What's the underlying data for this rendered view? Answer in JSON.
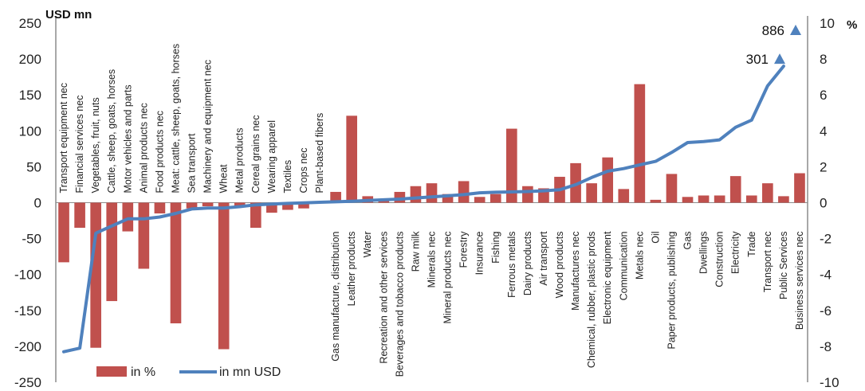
{
  "chart_data": {
    "type": "bar",
    "categories": [
      "Transport equipment nec",
      "Financial services nec",
      "Vegetables, fruit, nuts",
      "Cattle, sheep, goats, horses",
      "Motor vehicles and parts",
      "Animal products nec",
      "Food products nec",
      "Meat: cattle, sheep, goats, horses",
      "Sea transport",
      "Machinery and equipment nec",
      "Wheat",
      "Metal products",
      "Cereal grains nec",
      "Wearing apparel",
      "Textiles",
      "Crops nec",
      "Plant-based fibers",
      "Gas manufacture, distribution",
      "Leather products",
      "Water",
      "Recreation and other services",
      "Beverages and tobacco products",
      "Raw milk",
      "Minerals nec",
      "Mineral products nec",
      "Forestry",
      "Insurance",
      "Fishing",
      "Ferrous metals",
      "Dairy products",
      "Air transport",
      "Wood products",
      "Manufactures nec",
      "Chemical, rubber, plastic prods",
      "Electronic equipment",
      "Communication",
      "Metals nec",
      "Oil",
      "Paper products, publishing",
      "Gas",
      "Dwellings",
      "Construction",
      "Electricity",
      "Trade",
      "Transport nec",
      "Public Services",
      "Business services nec"
    ],
    "series": [
      {
        "name": "in %",
        "type": "bar",
        "axis": "left",
        "color": "#c0504d",
        "values": [
          -83,
          -35,
          -202,
          -137,
          -40,
          -92,
          -15,
          -168,
          -8,
          -5,
          -204,
          -5,
          -35,
          -14,
          -10,
          -8,
          -1,
          15,
          121,
          9,
          4,
          15,
          23,
          27,
          12,
          30,
          8,
          12,
          103,
          23,
          20,
          36,
          55,
          27,
          63,
          19,
          165,
          4,
          40,
          8,
          10,
          10,
          37,
          10,
          27,
          9,
          41
        ]
      },
      {
        "name": "in mn USD",
        "type": "line",
        "axis": "right",
        "color": "#4f81bd",
        "values": [
          -8.3,
          -8.1,
          -1.7,
          -1.3,
          -0.9,
          -0.9,
          -0.8,
          -0.6,
          -0.35,
          -0.3,
          -0.3,
          -0.22,
          -0.12,
          -0.08,
          -0.04,
          -0.01,
          0.02,
          0.05,
          0.08,
          0.12,
          0.16,
          0.2,
          0.26,
          0.32,
          0.38,
          0.45,
          0.55,
          0.58,
          0.6,
          0.62,
          0.66,
          0.72,
          1.0,
          1.4,
          1.75,
          1.9,
          2.1,
          2.3,
          2.8,
          3.35,
          3.4,
          3.5,
          4.2,
          4.6,
          6.5,
          7.6,
          7.6
        ]
      }
    ],
    "outlier_markers": [
      {
        "label": "301",
        "axis_value": 8.0
      },
      {
        "label": "886",
        "axis_value": 9.6
      }
    ],
    "ylabel": "USD mn",
    "y2label": "%",
    "ylim": [
      -250,
      250
    ],
    "y2lim": [
      -10,
      10
    ],
    "yticks": [
      "250",
      "200",
      "150",
      "100",
      "50",
      "0",
      "-50",
      "-100",
      "-150",
      "-200",
      "-250"
    ],
    "y2ticks": [
      "10",
      "8",
      "6",
      "4",
      "2",
      "0",
      "-2",
      "-4",
      "-6",
      "-8",
      "-10"
    ],
    "legend": {
      "placement": "bottom-left",
      "items": [
        "in %",
        "in mn USD"
      ]
    },
    "grid": false
  }
}
